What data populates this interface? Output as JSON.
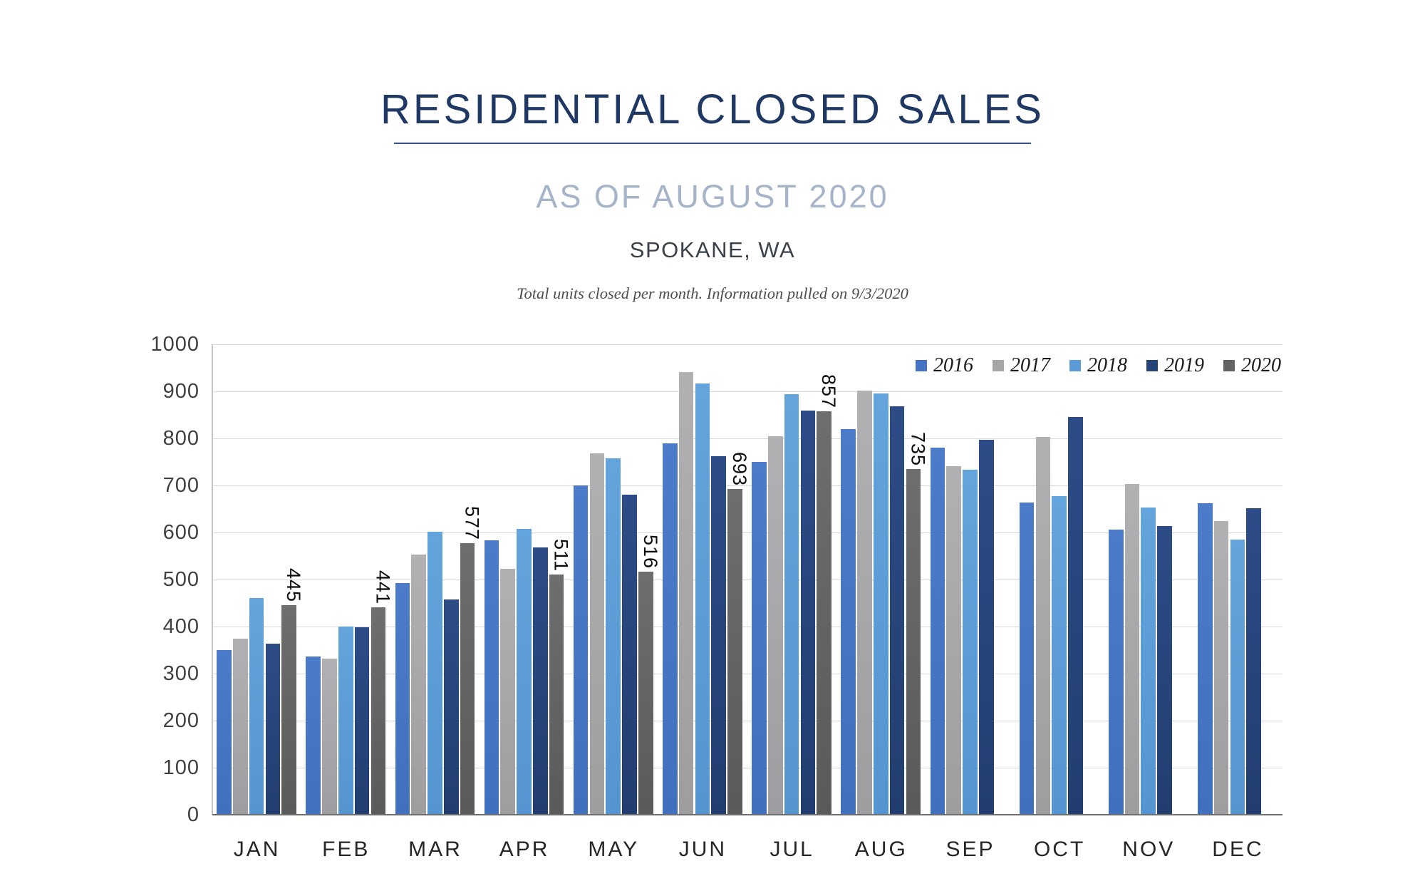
{
  "header": {
    "title": "RESIDENTIAL CLOSED SALES",
    "subtitle": "AS OF AUGUST 2020",
    "location": "SPOKANE, WA",
    "note": "Total units closed per month.  Information pulled on 9/3/2020"
  },
  "colors": {
    "title": "#1F3864",
    "underline": "#31508F",
    "subtitle": "#A6B4C9",
    "gridline": "#D9D9D9",
    "axis_text": "#404040"
  },
  "chart_data": {
    "type": "bar",
    "title": "RESIDENTIAL CLOSED SALES",
    "subtitle": "AS OF AUGUST 2020",
    "categories": [
      "JAN",
      "FEB",
      "MAR",
      "APR",
      "MAY",
      "JUN",
      "JUL",
      "AUG",
      "SEP",
      "OCT",
      "NOV",
      "DEC"
    ],
    "series": [
      {
        "name": "2016",
        "color": "#4472C4",
        "gradient": [
          "#4C7BCA",
          "#4070BE"
        ],
        "values": [
          350,
          337,
          493,
          583,
          700,
          790,
          750,
          820,
          780,
          663,
          606,
          662
        ],
        "show_labels": false
      },
      {
        "name": "2017",
        "color": "#A6A6A6",
        "gradient": [
          "#B1B1B3",
          "#9E9EA0"
        ],
        "values": [
          375,
          332,
          553,
          522,
          768,
          941,
          805,
          902,
          741,
          803,
          703,
          625
        ],
        "show_labels": false
      },
      {
        "name": "2018",
        "color": "#5B9BD5",
        "gradient": [
          "#64A4DC",
          "#5494D0"
        ],
        "values": [
          460,
          400,
          601,
          607,
          757,
          917,
          894,
          895,
          734,
          678,
          653,
          585
        ],
        "show_labels": false
      },
      {
        "name": "2019",
        "color": "#264478",
        "gradient": [
          "#2D4C87",
          "#223E70"
        ],
        "values": [
          363,
          399,
          458,
          568,
          680,
          762,
          859,
          868,
          797,
          845,
          613,
          652
        ],
        "show_labels": false
      },
      {
        "name": "2020",
        "color": "#636363",
        "gradient": [
          "#6E6E6E",
          "#5A5A5A"
        ],
        "values": [
          445,
          441,
          577,
          511,
          516,
          693,
          857,
          735,
          null,
          null,
          null,
          null
        ],
        "show_labels": true
      }
    ],
    "ylim": [
      0,
      1000
    ],
    "ytick_step": 100,
    "yticks": [
      0,
      100,
      200,
      300,
      400,
      500,
      600,
      700,
      800,
      900,
      1000
    ],
    "grid": true,
    "legend_position": "top-right",
    "xlabel": "",
    "ylabel": ""
  }
}
